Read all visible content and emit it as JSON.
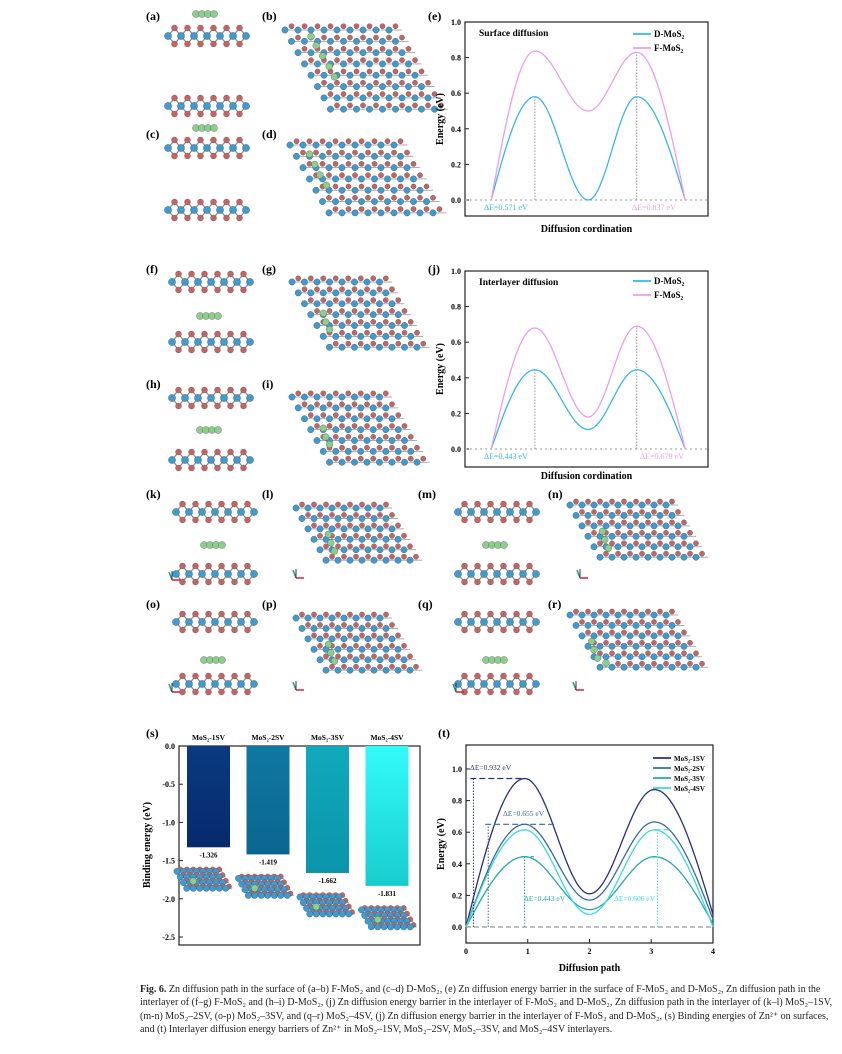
{
  "panel_labels": {
    "a": "(a)",
    "b": "(b)",
    "c": "(c)",
    "d": "(d)",
    "e": "(e)",
    "f": "(f)",
    "g": "(g)",
    "h": "(h)",
    "i": "(i)",
    "j": "(j)",
    "k": "(k)",
    "l": "(l)",
    "m": "(m)",
    "n": "(n)",
    "o": "(o)",
    "p": "(p)",
    "q": "(q)",
    "r": "(r)",
    "s": "(s)",
    "t": "(t)"
  },
  "atom_colors": {
    "Mo": "#3b9bd2",
    "S": "#c46464",
    "Zn": "#8ccf8c"
  },
  "chart_data": [
    {
      "id": "e",
      "type": "line",
      "title": "Surface diffusion",
      "xlabel": "Diffusion cordination",
      "ylabel": "Energy (eV)",
      "ylim": [
        0,
        1.0
      ],
      "yticks": [
        "0.0",
        "0.2",
        "0.4",
        "0.6",
        "0.8",
        "1.0"
      ],
      "ytick_values": [
        0,
        0.2,
        0.4,
        0.6,
        0.8,
        1.0
      ],
      "x": [
        0,
        0.9,
        2,
        3,
        4
      ],
      "series": [
        {
          "name": "D-MoS₂",
          "color": "#3ab4ee",
          "values": [
            0,
            0.58,
            0,
            0.58,
            0
          ]
        },
        {
          "name": "F-MoS₂",
          "color": "#ec9cf0",
          "values": [
            0,
            0.837,
            0.5,
            0.83,
            0
          ]
        }
      ],
      "legend": "top-right",
      "annotations": [
        {
          "text": "ΔE=0.571 eV",
          "color": "#3ab4ee"
        },
        {
          "text": "ΔE=0.837 eV",
          "color": "#ec9cf0"
        }
      ]
    },
    {
      "id": "j",
      "type": "line",
      "title": "Interlayer diffusion",
      "xlabel": "Diffusion cordination",
      "ylabel": "Energy (eV)",
      "ylim": [
        0,
        1.0
      ],
      "yticks": [
        "0.0",
        "0.2",
        "0.4",
        "0.6",
        "0.8",
        "1.0"
      ],
      "ytick_values": [
        0,
        0.2,
        0.4,
        0.6,
        0.8,
        1.0
      ],
      "x": [
        0,
        0.9,
        2,
        3,
        4
      ],
      "series": [
        {
          "name": "D-MoS₂",
          "color": "#3ab4ee",
          "values": [
            0,
            0.445,
            0.11,
            0.445,
            0
          ]
        },
        {
          "name": "F-MoS₂",
          "color": "#ec9cf0",
          "values": [
            0,
            0.68,
            0.18,
            0.69,
            0
          ]
        }
      ],
      "legend": "top-right",
      "annotations": [
        {
          "text": "ΔE=0.443 eV",
          "color": "#3ab4ee"
        },
        {
          "text": "ΔE=0.679 eV",
          "color": "#ec9cf0"
        }
      ]
    },
    {
      "id": "s",
      "type": "bar",
      "title": "",
      "xlabel": "",
      "ylabel": "Binding energy (eV)",
      "ylim": [
        -2.5,
        0
      ],
      "yticks": [
        "0.0",
        "-0.5",
        "-1.0",
        "-1.5",
        "-2.0",
        "-2.5"
      ],
      "ytick_values": [
        0,
        -0.5,
        -1.0,
        -1.5,
        -2.0,
        -2.5
      ],
      "categories": [
        "MoS₂-1SV",
        "MoS₂-2SV",
        "MoS₂-3SV",
        "MoS₂-4SV"
      ],
      "values": [
        -1.326,
        -1.419,
        -1.662,
        -1.831
      ],
      "value_labels": [
        "-1.326",
        "-1.419",
        "-1.662",
        "-1.831"
      ],
      "colors": [
        [
          "#0a3a80",
          "#062a6c"
        ],
        [
          "#0f78a2",
          "#0a6690"
        ],
        [
          "#10aabc",
          "#0a94aa"
        ],
        [
          "#33fbfb",
          "#18cccc"
        ]
      ]
    },
    {
      "id": "t",
      "type": "line",
      "title": "",
      "xlabel": "Diffusion path",
      "ylabel": "Energy (eV)",
      "xlim": [
        0,
        4
      ],
      "xticks": [
        "0",
        "1",
        "2",
        "3",
        "4"
      ],
      "xtick_values": [
        0,
        1,
        2,
        3,
        4
      ],
      "ylim": [
        -0.1,
        1.15
      ],
      "yticks": [
        "0.0",
        "0.2",
        "0.4",
        "0.6",
        "0.8",
        "1.0"
      ],
      "ytick_values": [
        0,
        0.2,
        0.4,
        0.6,
        0.8,
        1.0
      ],
      "x": [
        0,
        0.95,
        2,
        3.05,
        4
      ],
      "series": [
        {
          "name": "MoS₂-1SV",
          "color": "#26307e",
          "values": [
            0,
            0.94,
            0.21,
            0.87,
            0.08
          ]
        },
        {
          "name": "MoS₂-2SV",
          "color": "#3a68a6",
          "values": [
            0,
            0.65,
            0.17,
            0.665,
            0.05
          ]
        },
        {
          "name": "MoS₂-3SV",
          "color": "#2aa4b2",
          "values": [
            0,
            0.445,
            0.11,
            0.445,
            0.02
          ]
        },
        {
          "name": "MoS₂-4SV",
          "color": "#3ad8de",
          "values": [
            0,
            0.615,
            0.08,
            0.615,
            0.0
          ]
        }
      ],
      "legend": "top-right",
      "annotations": [
        {
          "text": "ΔE=0.932 eV",
          "color": "#26307e"
        },
        {
          "text": "ΔE=0.655 eV",
          "color": "#3a68a6"
        },
        {
          "text": "ΔE=0.443 eV",
          "color": "#2aa4b2"
        },
        {
          "text": "ΔE=0.606 eV",
          "color": "#3ad8de"
        }
      ]
    }
  ],
  "caption": {
    "label": "Fig. 6.",
    "text": "Zn diffusion path in the surface of (a–b) F-MoS₂ and (c–d) D-MoS₂, (e) Zn diffusion energy barrier in the surface of F-MoS₂ and D-MoS₂, Zn diffusion path in the interlayer of (f–g) F-MoS₂ and (h–i) D-MoS₂, (j) Zn diffusion energy barrier in the interlayer of F-MoS₂ and D-MoS₂, Zn diffusion path in the interlayer of (k–l) MoS₂–1SV, (m-n) MoS₂–2SV, (o-p) MoS₂–3SV, and (q–r) MoS₂–4SV, (j) Zn diffusion energy barrier in the interlayer of F-MoS₂ and D-MoS₂, (s) Binding energies of Zn²⁺ on surfaces, and (t) Interlayer diffusion energy barriers of Zn²⁺ in MoS₂–1SV, MoS₂–2SV, MoS₂–3SV, and MoS₂–4SV interlayers."
  }
}
